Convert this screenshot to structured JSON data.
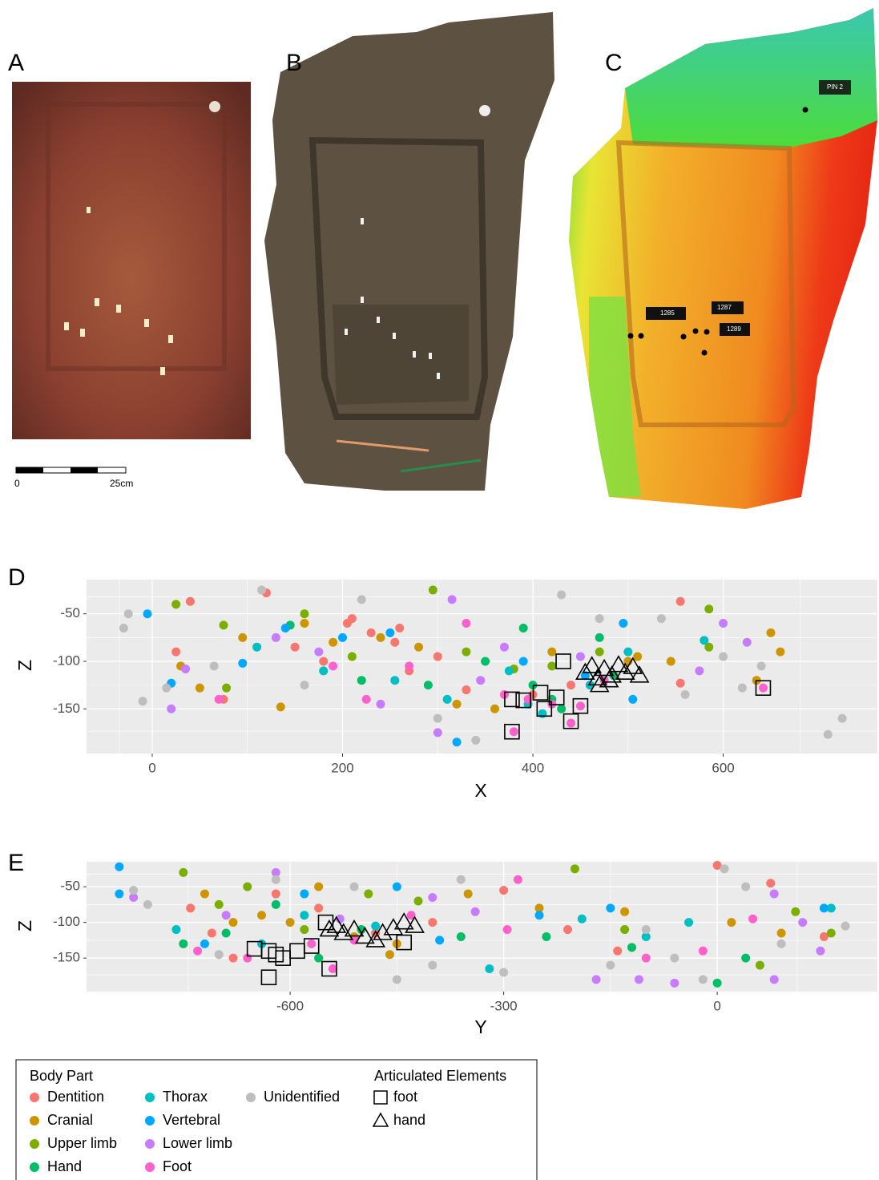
{
  "figure": {
    "panel_labels": [
      "A",
      "B",
      "C",
      "D",
      "E"
    ],
    "scale_bar": {
      "start_label": "0",
      "end_label": "25cm"
    },
    "panel_c_tags": [
      "PIN 2",
      "1285",
      "1287",
      "1289"
    ],
    "legend": {
      "body_part_title": "Body Part",
      "articulated_title": "Articulated Elements"
    }
  },
  "chart_data": [
    {
      "type": "scatter",
      "x_label": "X",
      "y_label": "Z",
      "xlim": [
        -69,
        762
      ],
      "ylim": [
        -197,
        -14
      ],
      "xticks": [
        0,
        200,
        400,
        600
      ],
      "yticks": [
        -50,
        -100,
        -150
      ],
      "grid": true,
      "series": [
        {
          "name": "Dentition",
          "color": "#F8766D",
          "x": [
            40,
            120,
            25,
            150,
            180,
            210,
            230,
            255,
            270,
            300,
            330,
            400,
            440,
            555,
            555,
            75,
            205,
            260
          ],
          "values": [
            -37,
            -28,
            -90,
            -85,
            -100,
            -55,
            -70,
            -80,
            -110,
            -95,
            -130,
            -135,
            -125,
            -37,
            -123,
            -140,
            -60,
            -65
          ]
        },
        {
          "name": "Cranial",
          "color": "#CD9600",
          "x": [
            30,
            50,
            95,
            135,
            160,
            190,
            240,
            280,
            320,
            360,
            420,
            500,
            545,
            635,
            660,
            650,
            510
          ],
          "values": [
            -105,
            -128,
            -75,
            -148,
            -60,
            -80,
            -75,
            -85,
            -145,
            -150,
            -90,
            -100,
            -100,
            -120,
            -90,
            -70,
            -95
          ]
        },
        {
          "name": "Upper limb",
          "color": "#7CAE00",
          "x": [
            25,
            75,
            78,
            160,
            210,
            295,
            330,
            380,
            420,
            470,
            585,
            585
          ],
          "values": [
            -40,
            -62,
            -128,
            -50,
            -95,
            -25,
            -90,
            -108,
            -105,
            -90,
            -45,
            -85
          ]
        },
        {
          "name": "Hand",
          "color": "#00BE67",
          "x": [
            145,
            220,
            290,
            350,
            390,
            400,
            420,
            470,
            485,
            430
          ],
          "values": [
            -62,
            -120,
            -125,
            -100,
            -65,
            -125,
            -140,
            -75,
            -115,
            -150
          ]
        },
        {
          "name": "Thorax",
          "color": "#00BFC4",
          "x": [
            110,
            180,
            255,
            310,
            375,
            395,
            460,
            500,
            580,
            410
          ],
          "values": [
            -85,
            -110,
            -120,
            -140,
            -110,
            -145,
            -125,
            -90,
            -78,
            -155
          ]
        },
        {
          "name": "Vertebral",
          "color": "#00A9FF",
          "x": [
            -5,
            20,
            95,
            140,
            200,
            250,
            320,
            390,
            455,
            505,
            495
          ],
          "values": [
            -50,
            -123,
            -102,
            -65,
            -75,
            -70,
            -185,
            -100,
            -115,
            -140,
            -60
          ]
        },
        {
          "name": "Lower limb",
          "color": "#C77CFF",
          "x": [
            20,
            35,
            130,
            175,
            240,
            300,
            315,
            345,
            370,
            450,
            575,
            600,
            625
          ],
          "values": [
            -150,
            -108,
            -75,
            -90,
            -145,
            -175,
            -35,
            -120,
            -85,
            -95,
            -110,
            -60,
            -80
          ]
        },
        {
          "name": "Foot",
          "color": "#FF61CC",
          "x": [
            70,
            190,
            225,
            270,
            330,
            370,
            380,
            395,
            420,
            440,
            450,
            642,
            475
          ],
          "values": [
            -140,
            -105,
            -140,
            -105,
            -60,
            -135,
            -174,
            -140,
            -145,
            -165,
            -147,
            -128,
            -120
          ]
        },
        {
          "name": "Unidentified",
          "color": "#BEBEBE",
          "x": [
            -30,
            -25,
            -10,
            15,
            65,
            115,
            160,
            220,
            300,
            340,
            430,
            470,
            560,
            600,
            620,
            640,
            710,
            725,
            535
          ],
          "values": [
            -65,
            -50,
            -142,
            -128,
            -105,
            -25,
            -125,
            -35,
            -160,
            -183,
            -30,
            -55,
            -135,
            -95,
            -128,
            -105,
            -177,
            -160,
            -55
          ]
        },
        {
          "name": "foot",
          "shape": "square",
          "color": "#000000",
          "x": [
            378,
            390,
            408,
            412,
            425,
            432,
            450,
            440,
            378,
            642
          ],
          "values": [
            -140,
            -141,
            -133,
            -150,
            -138,
            -100,
            -147,
            -163,
            -174,
            -128
          ]
        },
        {
          "name": "hand",
          "shape": "triangle",
          "color": "#000000",
          "x": [
            455,
            462,
            468,
            475,
            483,
            490,
            497,
            505,
            512,
            470,
            480
          ],
          "values": [
            -112,
            -105,
            -118,
            -108,
            -115,
            -104,
            -112,
            -106,
            -115,
            -125,
            -120
          ]
        }
      ]
    },
    {
      "type": "scatter",
      "x_label": "Y",
      "y_label": "Z",
      "xlim": [
        -886,
        225
      ],
      "ylim": [
        -197,
        -15
      ],
      "xticks": [
        -600,
        -300,
        0
      ],
      "yticks": [
        -50,
        -100,
        -150
      ],
      "grid": true,
      "series": [
        {
          "name": "Dentition",
          "color": "#F8766D",
          "x": [
            -740,
            -710,
            -680,
            -560,
            -480,
            -400,
            -300,
            -210,
            -140,
            0,
            75,
            150,
            -620
          ],
          "values": [
            -80,
            -115,
            -150,
            -80,
            -115,
            -100,
            -55,
            -110,
            -140,
            -20,
            -45,
            -120,
            -60
          ]
        },
        {
          "name": "Cranial",
          "color": "#CD9600",
          "x": [
            -720,
            -680,
            -640,
            -600,
            -560,
            -510,
            -460,
            -350,
            -250,
            -130,
            20,
            90,
            -450
          ],
          "values": [
            -60,
            -100,
            -90,
            -100,
            -50,
            -120,
            -145,
            -60,
            -80,
            -85,
            -100,
            -115,
            -130
          ]
        },
        {
          "name": "Upper limb",
          "color": "#7CAE00",
          "x": [
            -750,
            -700,
            -660,
            -580,
            -490,
            -420,
            -200,
            -130,
            60,
            160,
            110
          ],
          "values": [
            -30,
            -75,
            -50,
            -110,
            -60,
            -70,
            -25,
            -110,
            -160,
            -115,
            -85
          ]
        },
        {
          "name": "Hand",
          "color": "#00BE67",
          "x": [
            -750,
            -690,
            -620,
            -560,
            -500,
            -360,
            -240,
            -120,
            40,
            0
          ],
          "values": [
            -130,
            -115,
            -75,
            -150,
            -110,
            -120,
            -120,
            -135,
            -150,
            -185
          ]
        },
        {
          "name": "Thorax",
          "color": "#00BFC4",
          "x": [
            -760,
            -640,
            -580,
            -480,
            -320,
            -190,
            -100,
            160,
            -40
          ],
          "values": [
            -110,
            -130,
            -90,
            -105,
            -165,
            -95,
            -120,
            -80,
            -100
          ]
        },
        {
          "name": "Vertebral",
          "color": "#00A9FF",
          "x": [
            -840,
            -840,
            -720,
            -580,
            -390,
            -250,
            -150,
            150,
            -450
          ],
          "values": [
            -22,
            -60,
            -130,
            -60,
            -125,
            -90,
            -80,
            -80,
            -50
          ]
        },
        {
          "name": "Lower limb",
          "color": "#C77CFF",
          "x": [
            -820,
            -690,
            -620,
            -530,
            -400,
            -340,
            -170,
            -60,
            80,
            -110,
            120,
            145,
            80
          ],
          "values": [
            -65,
            -90,
            -30,
            -95,
            -65,
            -85,
            -180,
            -185,
            -60,
            -180,
            -100,
            -140,
            -180
          ]
        },
        {
          "name": "Foot",
          "color": "#FF61CC",
          "x": [
            -730,
            -660,
            -540,
            -510,
            -430,
            -295,
            -280,
            -100,
            -20,
            50,
            -570
          ],
          "values": [
            -140,
            -150,
            -165,
            -125,
            -90,
            -110,
            -40,
            -150,
            -140,
            -95,
            -130
          ]
        },
        {
          "name": "Unidentified",
          "color": "#BEBEBE",
          "x": [
            -820,
            -800,
            -700,
            -620,
            -510,
            -450,
            -360,
            -300,
            -150,
            -100,
            -60,
            10,
            40,
            90,
            180,
            -20,
            -400
          ],
          "values": [
            -55,
            -75,
            -145,
            -40,
            -50,
            -180,
            -40,
            -170,
            -160,
            -110,
            -150,
            -25,
            -50,
            -130,
            -105,
            -180,
            -160
          ]
        },
        {
          "name": "foot",
          "shape": "square",
          "color": "#000000",
          "x": [
            -650,
            -630,
            -620,
            -610,
            -590,
            -570,
            -545,
            -630,
            -440,
            -550
          ],
          "values": [
            -137,
            -140,
            -145,
            -150,
            -140,
            -133,
            -165,
            -177,
            -128,
            -100
          ]
        },
        {
          "name": "hand",
          "shape": "triangle",
          "color": "#000000",
          "x": [
            -545,
            -535,
            -525,
            -510,
            -495,
            -480,
            -470,
            -455,
            -440,
            -425
          ],
          "values": [
            -110,
            -105,
            -115,
            -110,
            -120,
            -125,
            -115,
            -108,
            -100,
            -105
          ]
        }
      ]
    }
  ]
}
